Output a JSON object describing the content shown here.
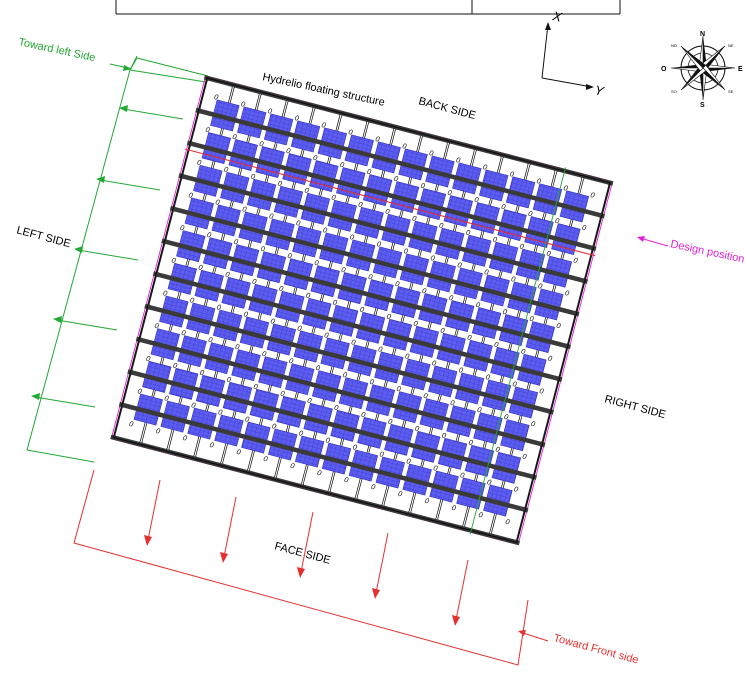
{
  "labels": {
    "toward_left": "Toward left Side",
    "floating_structure": "Hydrelio floating structure",
    "back_side": "BACK SIDE",
    "left_side": "LEFT SIDE",
    "right_side": "RIGHT SIDE",
    "face_side": "FACE SIDE",
    "design_position": "Design position",
    "toward_front": "Toward Front side",
    "axis_x": "X",
    "axis_y": "Y",
    "float_mark": "0"
  },
  "compass": {
    "n": "N",
    "s": "S",
    "e": "E",
    "o": "O",
    "no": "NO",
    "ne": "NE",
    "so": "SO",
    "se": "SE"
  },
  "layout": {
    "float_rows": 11,
    "float_cols": 15,
    "panel_rows": 10,
    "panel_cols": 14
  },
  "colors": {
    "panel": "#5c5cf0",
    "panel_grid": "#2a2ab8",
    "walkway": "#3a3a3a",
    "green": "#22a833",
    "red": "#e63030",
    "magenta": "#e020d8",
    "black": "#111111"
  }
}
